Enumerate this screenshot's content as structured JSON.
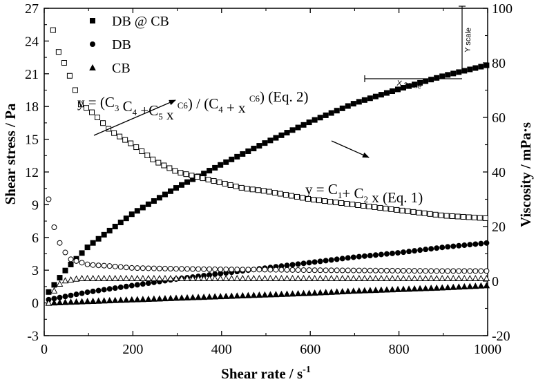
{
  "chart_data": {
    "type": "scatter",
    "title": "",
    "xlabel": "Shear rate / s",
    "xlabel_sup": "-1",
    "ylabel": "Shear stress / Pa",
    "y2label": "Viscosity / mPa·s",
    "xlim": [
      0,
      1000
    ],
    "ylim": [
      -3,
      27
    ],
    "y2lim": [
      -20,
      100
    ],
    "xticks": [
      "0",
      "200",
      "400",
      "600",
      "800",
      "1000"
    ],
    "yticks": [
      "-3",
      "0",
      "3",
      "6",
      "9",
      "12",
      "15",
      "18",
      "21",
      "24",
      "27"
    ],
    "y2ticks": [
      "-20",
      "0",
      "20",
      "40",
      "60",
      "80",
      "100"
    ],
    "grid": false,
    "legend_position": "top-left",
    "legend": [
      {
        "label": "DB @ CB",
        "marker": "square"
      },
      {
        "label": "DB",
        "marker": "circle"
      },
      {
        "label": "CB",
        "marker": "triangle"
      }
    ],
    "series": [
      {
        "name": "DB @ CB",
        "axis": "left",
        "marker": "square",
        "filled": true,
        "x": [
          10,
          50,
          100,
          200,
          300,
          400,
          500,
          600,
          700,
          800,
          900,
          1000
        ],
        "y": [
          1.0,
          3.1,
          5.2,
          8.2,
          10.6,
          12.7,
          14.7,
          16.6,
          18.3,
          19.6,
          20.8,
          21.8
        ]
      },
      {
        "name": "DB",
        "axis": "left",
        "marker": "circle",
        "filled": true,
        "x": [
          10,
          100,
          200,
          300,
          400,
          500,
          600,
          700,
          800,
          900,
          1000
        ],
        "y": [
          0.3,
          1.0,
          1.6,
          2.2,
          2.7,
          3.2,
          3.7,
          4.2,
          4.6,
          5.1,
          5.5
        ]
      },
      {
        "name": "CB",
        "axis": "left",
        "marker": "triangle",
        "filled": true,
        "x": [
          10,
          100,
          200,
          300,
          400,
          500,
          600,
          700,
          800,
          900,
          1000
        ],
        "y": [
          0.0,
          0.15,
          0.3,
          0.45,
          0.6,
          0.75,
          0.9,
          1.1,
          1.25,
          1.4,
          1.6
        ]
      },
      {
        "name": "DB @ CB",
        "axis": "right",
        "marker": "square",
        "filled": false,
        "x": [
          20,
          30,
          40,
          50,
          60,
          70,
          80,
          100,
          120,
          150,
          200,
          250,
          300,
          350,
          400,
          450,
          500,
          600,
          700,
          800,
          900,
          1000
        ],
        "y": [
          92,
          85,
          81,
          79,
          74,
          70,
          65,
          63,
          60,
          55,
          50,
          44,
          40,
          38,
          36,
          34,
          33,
          30,
          28,
          26,
          24,
          23
        ]
      },
      {
        "name": "DB",
        "axis": "right",
        "marker": "circle",
        "filled": false,
        "x": [
          10,
          20,
          30,
          40,
          50,
          60,
          80,
          100,
          150,
          200,
          300,
          400,
          500,
          600,
          700,
          800,
          900,
          1000
        ],
        "y": [
          30,
          21,
          16,
          12,
          10,
          8,
          7,
          6,
          5.5,
          4.8,
          4.5,
          4.3,
          4.2,
          4.0,
          3.9,
          3.8,
          3.7,
          3.7
        ]
      },
      {
        "name": "CB",
        "axis": "right",
        "marker": "triangle",
        "filled": false,
        "x": [
          10,
          20,
          30,
          40,
          60,
          80,
          100,
          150,
          200,
          300,
          400,
          500,
          600,
          700,
          800,
          900,
          1000
        ],
        "y": [
          -8,
          -4,
          -2,
          0,
          0.5,
          1,
          1,
          1,
          1,
          1,
          1,
          1,
          1,
          1,
          1,
          1,
          1
        ]
      }
    ],
    "annotations": [
      {
        "id": "eq2",
        "parts": [
          {
            "t": "y = (C"
          },
          {
            "t": "3",
            "sub": true
          },
          {
            "t": " C"
          },
          {
            "t": "4",
            "sub": true
          },
          {
            "t": " +C"
          },
          {
            "t": "5",
            "sub": true
          },
          {
            "t": " x "
          },
          {
            "t": "C6",
            "sup": true
          },
          {
            "t": ") / (C"
          },
          {
            "t": "4",
            "sub": true
          },
          {
            "t": " + x "
          },
          {
            "t": "C6",
            "sup": true
          },
          {
            "t": ") (Eq. 2)"
          }
        ]
      },
      {
        "id": "eq1",
        "parts": [
          {
            "t": "y = C"
          },
          {
            "t": "1",
            "sub": true
          },
          {
            "t": "+ C"
          },
          {
            "t": "2",
            "sub": true
          },
          {
            "t": " x (Eq. 1)"
          }
        ]
      }
    ],
    "scale_labels": {
      "x": "X scale",
      "y": "Y scale"
    }
  }
}
